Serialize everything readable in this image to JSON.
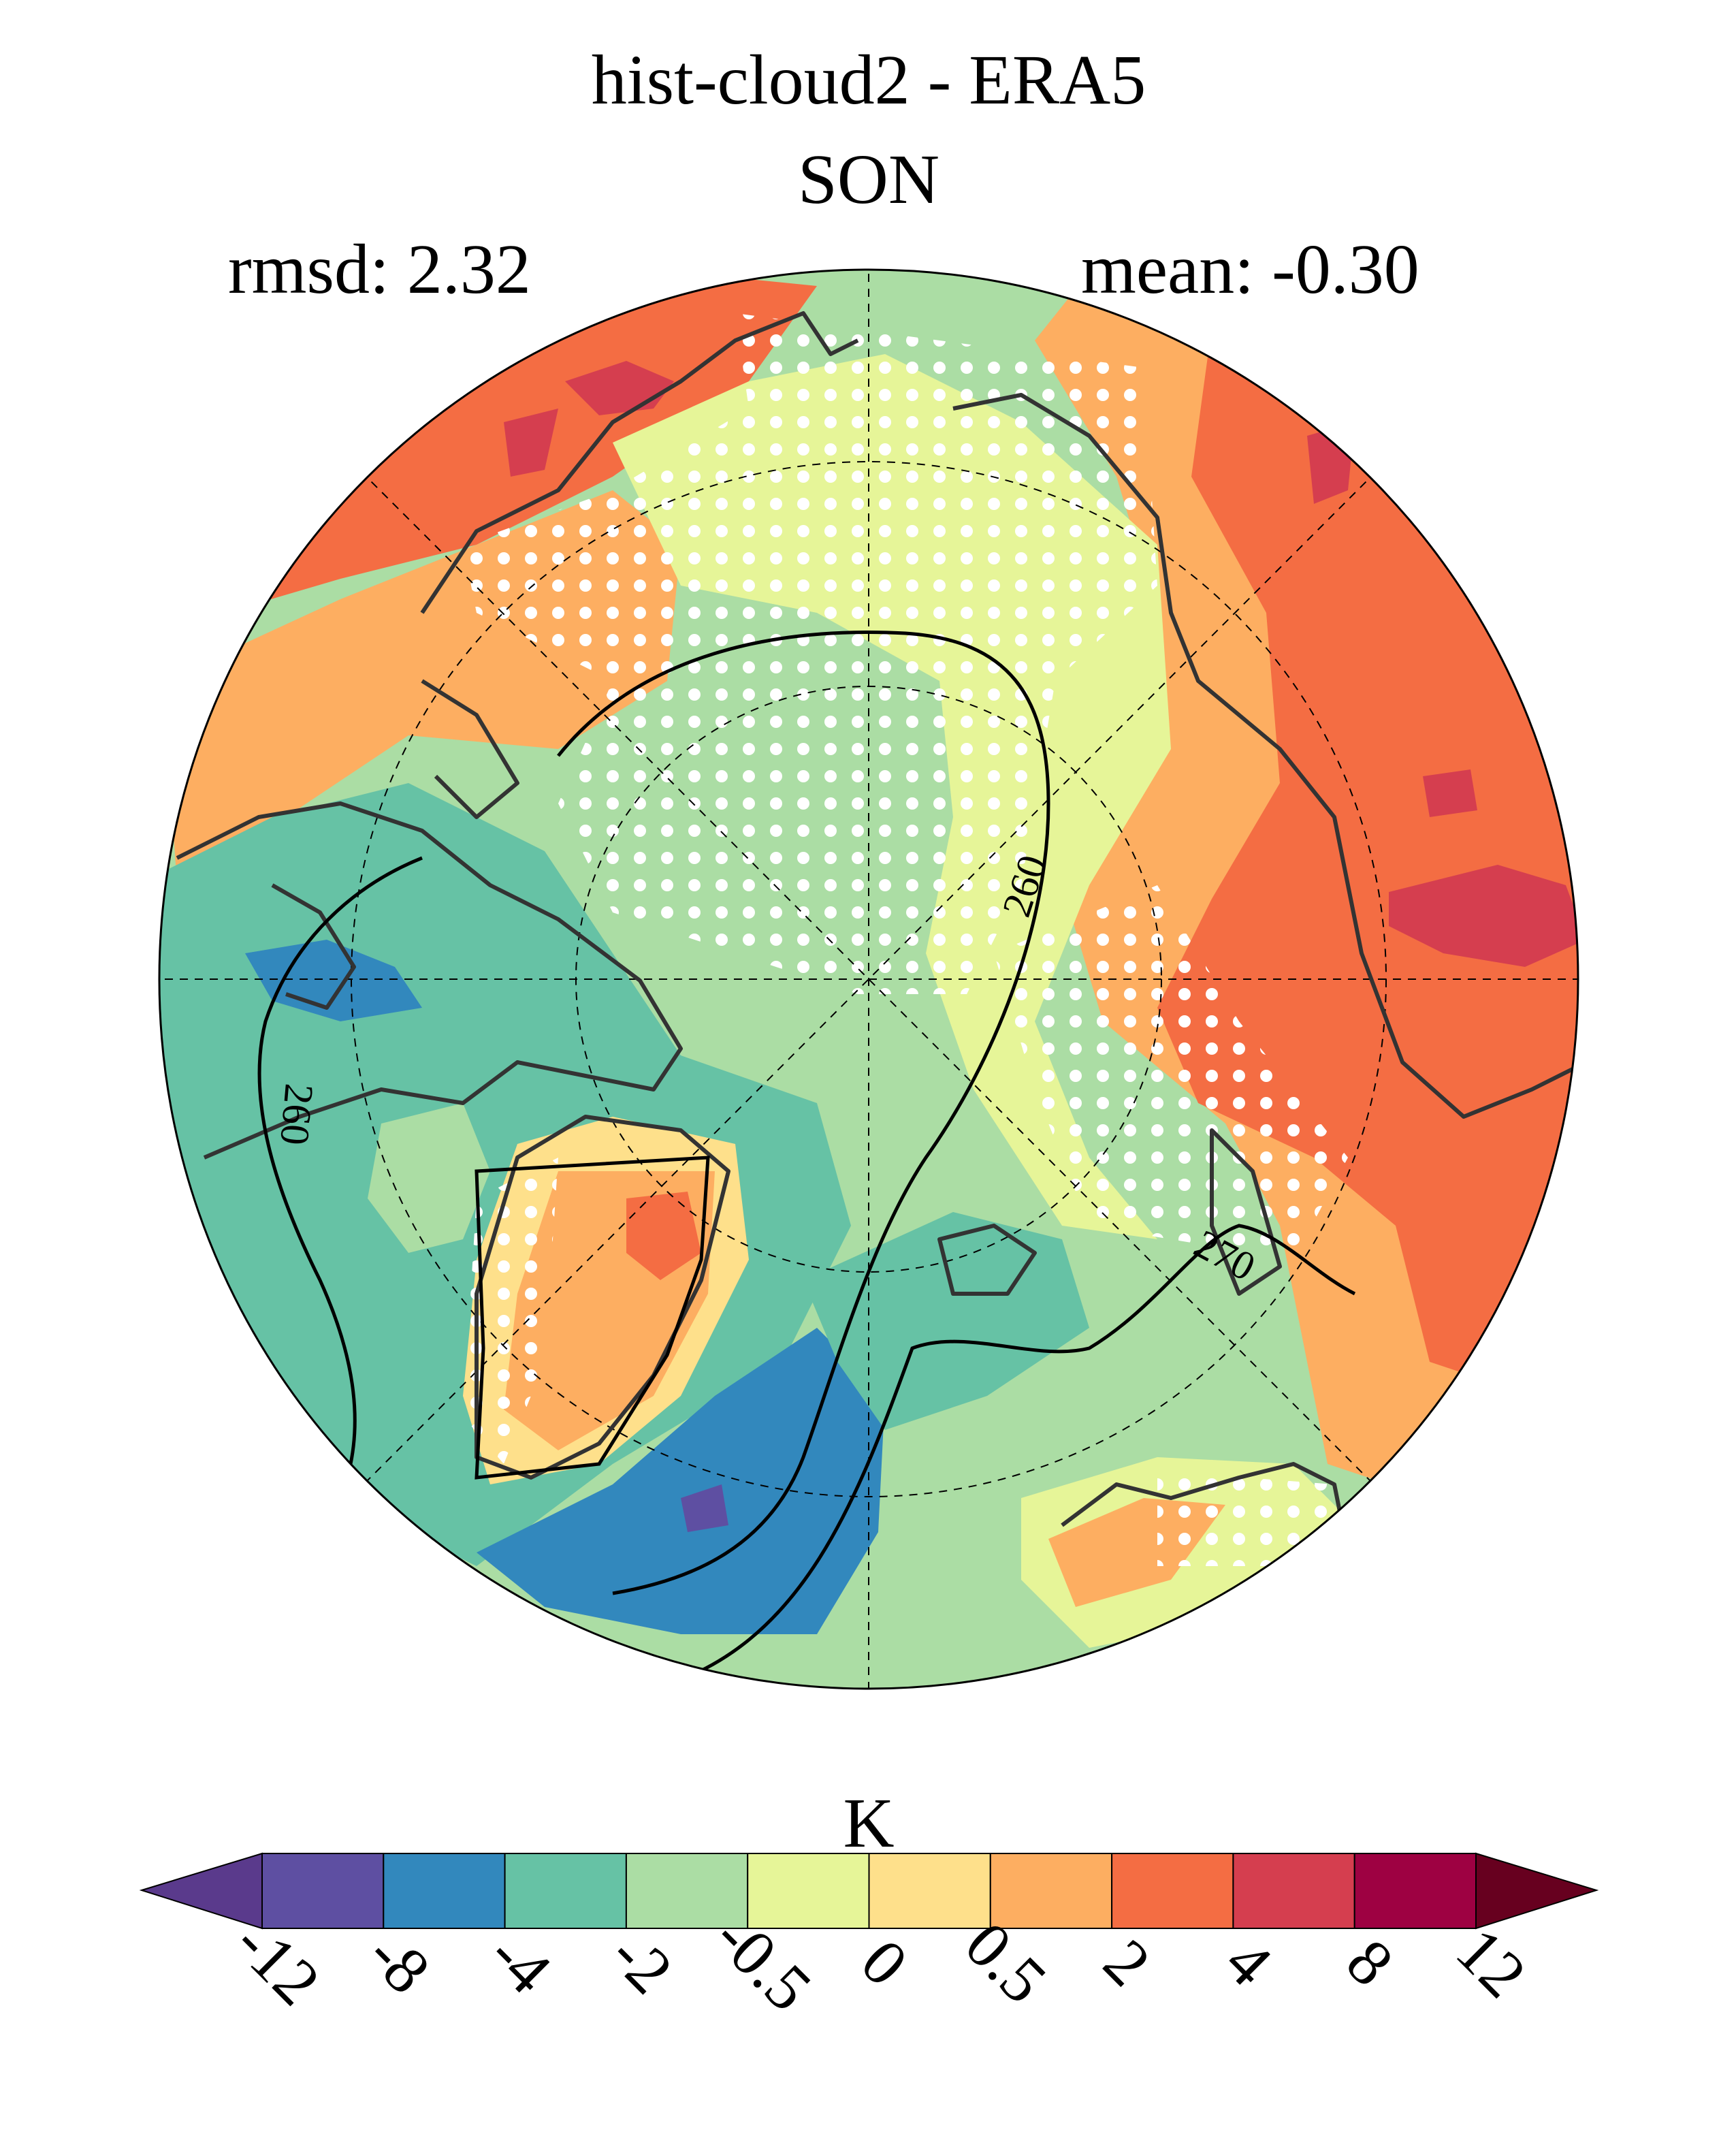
{
  "title_line1": "hist-cloud2 - ERA5",
  "title_line2": "SON",
  "stat_rmsd": "rmsd: 2.32",
  "stat_mean": "mean: -0.30",
  "contour_labels": [
    "260",
    "260",
    "270"
  ],
  "colorbar": {
    "unit": "K",
    "ticks": [
      "-12",
      "-8",
      "-4",
      "-2",
      "-0.5",
      "0",
      "0.5",
      "2",
      "4",
      "8",
      "12"
    ],
    "colors": [
      "#5e4fa2",
      "#3288bd",
      "#66c2a5",
      "#abdda4",
      "#e6f598",
      "#fee08b",
      "#fdae61",
      "#f46d43",
      "#d53e4f",
      "#9e0142"
    ],
    "under_color": "#5a3a8c",
    "over_color": "#67001f"
  },
  "chart_data": {
    "type": "heatmap",
    "projection": "north-polar-stereographic",
    "title": "hist-cloud2 - ERA5",
    "subtitle": "SON",
    "rmsd": 2.32,
    "mean": -0.3,
    "variable_unit": "K",
    "levels": [
      -12,
      -8,
      -4,
      -2,
      -0.5,
      0,
      0.5,
      2,
      4,
      8,
      12
    ],
    "contours_K": [
      260,
      270
    ],
    "stippling": "white dots mark grid points (significance)"
  }
}
